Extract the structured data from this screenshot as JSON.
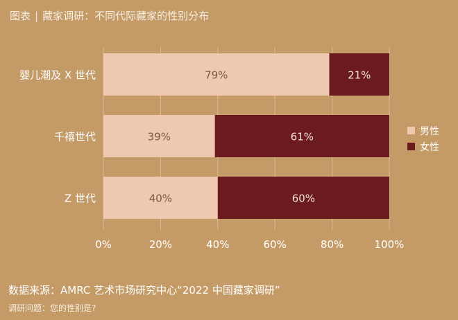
{
  "header": {
    "label": "图表",
    "separator": "|",
    "title": "藏家调研：不同代际藏家的性别分布"
  },
  "footer": {
    "source": "数据来源：AMRC 艺术市场研究中心“2022 中国藏家调研”",
    "question": "调研问题：您的性别是?"
  },
  "colors": {
    "background": "#c49a66",
    "male": "#efc8b0",
    "female": "#6b1a20",
    "grid": "#d9bd98",
    "text_dark": "#7a5a48",
    "text_light": "#f3e3d8"
  },
  "chart_data": {
    "type": "bar",
    "orientation": "horizontal",
    "stacked": true,
    "categories": [
      "婴儿潮及 X 世代",
      "千禧世代",
      "Z 世代"
    ],
    "series": [
      {
        "name": "男性",
        "values": [
          79,
          39,
          40
        ],
        "labels": [
          "79%",
          "39%",
          "40%"
        ]
      },
      {
        "name": "女性",
        "values": [
          21,
          61,
          60
        ],
        "labels": [
          "21%",
          "61%",
          "60%"
        ]
      }
    ],
    "xlim": [
      0,
      100
    ],
    "xticks": [
      0,
      20,
      40,
      60,
      80,
      100
    ],
    "xtick_labels": [
      "0%",
      "20%",
      "40%",
      "60%",
      "80%",
      "100%"
    ],
    "grid": true,
    "legend": "right"
  }
}
